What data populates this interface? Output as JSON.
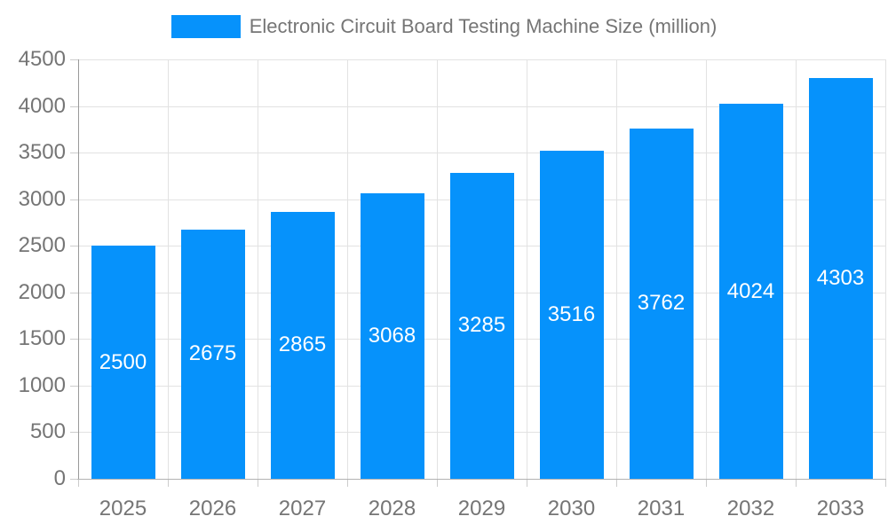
{
  "legend": {
    "label": "Electronic Circuit Board Testing Machine Size (million)"
  },
  "chart_data": {
    "type": "bar",
    "title": "Electronic Circuit Board Testing Machine Size (million)",
    "series_name": "Electronic Circuit Board Testing Machine Size (million)",
    "categories": [
      "2025",
      "2026",
      "2027",
      "2028",
      "2029",
      "2030",
      "2031",
      "2032",
      "2033"
    ],
    "values": [
      2500,
      2675,
      2865,
      3068,
      3285,
      3516,
      3762,
      4024,
      4303
    ],
    "xlabel": "",
    "ylabel": "",
    "ylim": [
      0,
      4500
    ],
    "ytick_step": 500,
    "grid": true,
    "legend_position": "top",
    "bar_labels_inside": true
  },
  "colors": {
    "bar": "#0692FB",
    "bar_label": "#FFFFFF",
    "grid": "#E2E2E2",
    "axis": "#999999",
    "tick": "#CCCCCC",
    "text": "#757575",
    "background": "#FFFFFF"
  }
}
